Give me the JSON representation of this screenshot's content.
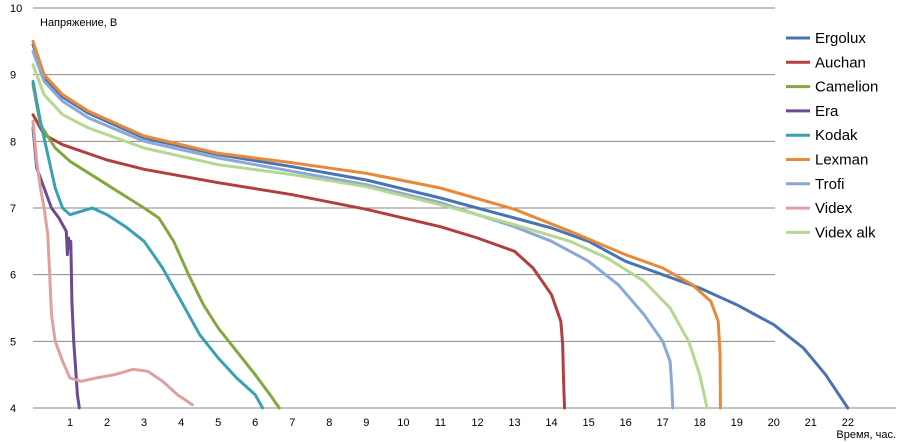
{
  "chart_data": {
    "type": "line",
    "ylabel": "Напряжение, В",
    "xlabel": "Время, час.",
    "xlim": [
      0,
      23.3
    ],
    "ylim": [
      4,
      10
    ],
    "xticks": [
      "1",
      "2",
      "3",
      "4",
      "5",
      "6",
      "7",
      "8",
      "9",
      "10",
      "11",
      "12",
      "13",
      "14",
      "15",
      "16",
      "17",
      "18",
      "19",
      "20",
      "21",
      "22"
    ],
    "yticks": [
      "4",
      "5",
      "6",
      "7",
      "8",
      "9",
      "10"
    ],
    "grid": true,
    "legend_position": "right",
    "series": [
      {
        "name": "Ergolux",
        "color": "#4a74b0",
        "points": [
          [
            0,
            9.45
          ],
          [
            0.3,
            8.95
          ],
          [
            0.7,
            8.7
          ],
          [
            1.5,
            8.42
          ],
          [
            3,
            8.05
          ],
          [
            5,
            7.8
          ],
          [
            7,
            7.62
          ],
          [
            9,
            7.42
          ],
          [
            11,
            7.15
          ],
          [
            13,
            6.85
          ],
          [
            14,
            6.7
          ],
          [
            15,
            6.5
          ],
          [
            16,
            6.2
          ],
          [
            17,
            6.0
          ],
          [
            18,
            5.8
          ],
          [
            19,
            5.55
          ],
          [
            20,
            5.25
          ],
          [
            20.8,
            4.9
          ],
          [
            21.4,
            4.5
          ],
          [
            22,
            4.0
          ]
        ]
      },
      {
        "name": "Auchan",
        "color": "#b04040",
        "points": [
          [
            0,
            8.4
          ],
          [
            0.3,
            8.1
          ],
          [
            0.8,
            7.95
          ],
          [
            2,
            7.72
          ],
          [
            3,
            7.58
          ],
          [
            5,
            7.38
          ],
          [
            7,
            7.2
          ],
          [
            9,
            6.98
          ],
          [
            11,
            6.72
          ],
          [
            12,
            6.55
          ],
          [
            13,
            6.35
          ],
          [
            13.5,
            6.1
          ],
          [
            14,
            5.7
          ],
          [
            14.25,
            5.3
          ],
          [
            14.3,
            4.95
          ],
          [
            14.32,
            4.5
          ],
          [
            14.35,
            4.0
          ]
        ]
      },
      {
        "name": "Camelion",
        "color": "#84a840",
        "points": [
          [
            0,
            8.85
          ],
          [
            0.2,
            8.25
          ],
          [
            0.6,
            7.9
          ],
          [
            1,
            7.7
          ],
          [
            2,
            7.35
          ],
          [
            3,
            7.0
          ],
          [
            3.4,
            6.85
          ],
          [
            3.8,
            6.5
          ],
          [
            4.2,
            6.0
          ],
          [
            4.6,
            5.55
          ],
          [
            5.0,
            5.2
          ],
          [
            5.5,
            4.85
          ],
          [
            6.0,
            4.5
          ],
          [
            6.4,
            4.2
          ],
          [
            6.65,
            4.0
          ]
        ]
      },
      {
        "name": "Era",
        "color": "#6a4a90",
        "points": [
          [
            0,
            8.2
          ],
          [
            0.1,
            7.6
          ],
          [
            0.3,
            7.3
          ],
          [
            0.5,
            7.0
          ],
          [
            0.7,
            6.85
          ],
          [
            0.9,
            6.65
          ],
          [
            0.93,
            6.3
          ],
          [
            0.96,
            6.55
          ],
          [
            0.99,
            6.4
          ],
          [
            1.02,
            6.5
          ],
          [
            1.05,
            5.6
          ],
          [
            1.1,
            5.0
          ],
          [
            1.15,
            4.6
          ],
          [
            1.2,
            4.2
          ],
          [
            1.25,
            4.0
          ]
        ]
      },
      {
        "name": "Kodak",
        "color": "#3aa0b8",
        "points": [
          [
            0,
            8.9
          ],
          [
            0.2,
            8.3
          ],
          [
            0.4,
            7.8
          ],
          [
            0.6,
            7.3
          ],
          [
            0.8,
            7.0
          ],
          [
            1.0,
            6.9
          ],
          [
            1.3,
            6.95
          ],
          [
            1.6,
            7.0
          ],
          [
            2.0,
            6.9
          ],
          [
            2.5,
            6.72
          ],
          [
            3.0,
            6.5
          ],
          [
            3.5,
            6.1
          ],
          [
            4.0,
            5.6
          ],
          [
            4.5,
            5.1
          ],
          [
            5.0,
            4.75
          ],
          [
            5.5,
            4.45
          ],
          [
            6.0,
            4.2
          ],
          [
            6.2,
            4.0
          ]
        ]
      },
      {
        "name": "Lexman",
        "color": "#e8893a",
        "points": [
          [
            0,
            9.5
          ],
          [
            0.3,
            9.0
          ],
          [
            0.8,
            8.7
          ],
          [
            1.5,
            8.45
          ],
          [
            3,
            8.08
          ],
          [
            5,
            7.82
          ],
          [
            7,
            7.68
          ],
          [
            9,
            7.52
          ],
          [
            11,
            7.3
          ],
          [
            13,
            6.98
          ],
          [
            14.5,
            6.65
          ],
          [
            16,
            6.3
          ],
          [
            17,
            6.1
          ],
          [
            17.8,
            5.85
          ],
          [
            18.3,
            5.6
          ],
          [
            18.5,
            5.3
          ],
          [
            18.55,
            4.8
          ],
          [
            18.56,
            4.0
          ]
        ]
      },
      {
        "name": "Trofi",
        "color": "#8aa8d8",
        "points": [
          [
            0,
            9.35
          ],
          [
            0.3,
            8.9
          ],
          [
            0.8,
            8.6
          ],
          [
            1.5,
            8.35
          ],
          [
            3,
            8.0
          ],
          [
            5,
            7.75
          ],
          [
            7,
            7.55
          ],
          [
            9,
            7.35
          ],
          [
            11,
            7.08
          ],
          [
            13,
            6.72
          ],
          [
            14,
            6.5
          ],
          [
            15,
            6.2
          ],
          [
            15.8,
            5.85
          ],
          [
            16.5,
            5.4
          ],
          [
            17,
            5.0
          ],
          [
            17.2,
            4.7
          ],
          [
            17.25,
            4.3
          ],
          [
            17.27,
            4.0
          ]
        ]
      },
      {
        "name": "Videx",
        "color": "#e0a0a0",
        "points": [
          [
            0,
            8.3
          ],
          [
            0.1,
            7.7
          ],
          [
            0.2,
            7.3
          ],
          [
            0.3,
            7.0
          ],
          [
            0.4,
            6.6
          ],
          [
            0.45,
            6.0
          ],
          [
            0.5,
            5.4
          ],
          [
            0.6,
            5.0
          ],
          [
            0.8,
            4.7
          ],
          [
            1.0,
            4.45
          ],
          [
            1.3,
            4.4
          ],
          [
            1.7,
            4.45
          ],
          [
            2.2,
            4.5
          ],
          [
            2.7,
            4.58
          ],
          [
            3.1,
            4.55
          ],
          [
            3.5,
            4.4
          ],
          [
            3.9,
            4.2
          ],
          [
            4.3,
            4.05
          ]
        ]
      },
      {
        "name": "Videx alk",
        "color": "#b4d890",
        "points": [
          [
            0,
            9.15
          ],
          [
            0.3,
            8.7
          ],
          [
            0.8,
            8.4
          ],
          [
            1.5,
            8.2
          ],
          [
            3,
            7.9
          ],
          [
            5,
            7.65
          ],
          [
            7,
            7.5
          ],
          [
            9,
            7.32
          ],
          [
            11,
            7.05
          ],
          [
            13,
            6.75
          ],
          [
            14.5,
            6.5
          ],
          [
            15.5,
            6.25
          ],
          [
            16.5,
            5.9
          ],
          [
            17.2,
            5.5
          ],
          [
            17.7,
            5.0
          ],
          [
            18.0,
            4.5
          ],
          [
            18.2,
            4.0
          ]
        ]
      }
    ]
  }
}
